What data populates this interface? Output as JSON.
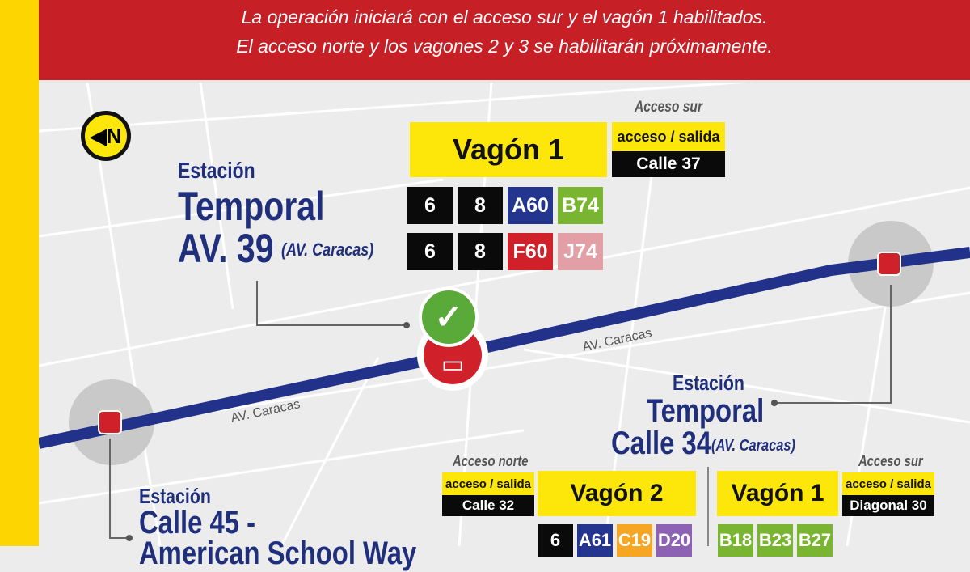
{
  "banner": {
    "line1": "La operación iniciará con el acceso sur y el vagón 1 habilitados.",
    "line2": "El acceso norte y los vagones 2 y 3 se habilitarán próximamente."
  },
  "compass": {
    "label": "N",
    "icon": "north-arrow-icon"
  },
  "colors": {
    "red": "#c61f26",
    "yellow": "#fde70a",
    "navy": "#1f2f7c",
    "route": "#22318a"
  },
  "streets": {
    "road1": "AV. Caracas",
    "road2": "AV. Caracas"
  },
  "station_av39": {
    "prefix": "Estación",
    "name1": "Temporal",
    "name2": "AV. 39",
    "sub": "(AV. Caracas)",
    "access_label": "Acceso sur",
    "access_type": "acceso / salida",
    "access_street": "Calle 37",
    "wagon": "Vagón 1",
    "routes_row1": [
      {
        "code": "6",
        "color": "#0a0a0a"
      },
      {
        "code": "8",
        "color": "#0a0a0a"
      },
      {
        "code": "A60",
        "color": "#23358f"
      },
      {
        "code": "B74",
        "color": "#7ab532"
      }
    ],
    "routes_row2": [
      {
        "code": "6",
        "color": "#0a0a0a"
      },
      {
        "code": "8",
        "color": "#0a0a0a"
      },
      {
        "code": "F60",
        "color": "#d0202a"
      },
      {
        "code": "J74",
        "color": "#e2a0a6"
      }
    ]
  },
  "station_c34": {
    "prefix": "Estación",
    "name1": "Temporal",
    "name2": "Calle 34",
    "sub": "(AV. Caracas)",
    "north_label": "Acceso norte",
    "north_type": "acceso / salida",
    "north_street": "Calle 32",
    "wagon2": "Vagón 2",
    "wagon1": "Vagón 1",
    "south_label": "Acceso sur",
    "south_type": "acceso / salida",
    "south_street": "Diagonal 30",
    "routes_w2": [
      {
        "code": "6",
        "color": "#0a0a0a"
      },
      {
        "code": "A61",
        "color": "#23358f"
      },
      {
        "code": "C19",
        "color": "#f6a623"
      },
      {
        "code": "D20",
        "color": "#8d62b5"
      }
    ],
    "routes_w1": [
      {
        "code": "B18",
        "color": "#7ab532"
      },
      {
        "code": "B23",
        "color": "#7ab532"
      },
      {
        "code": "B27",
        "color": "#7ab532"
      }
    ]
  },
  "station_c45": {
    "prefix": "Estación",
    "name1": "Calle 45 -",
    "name2": "American School Way"
  }
}
